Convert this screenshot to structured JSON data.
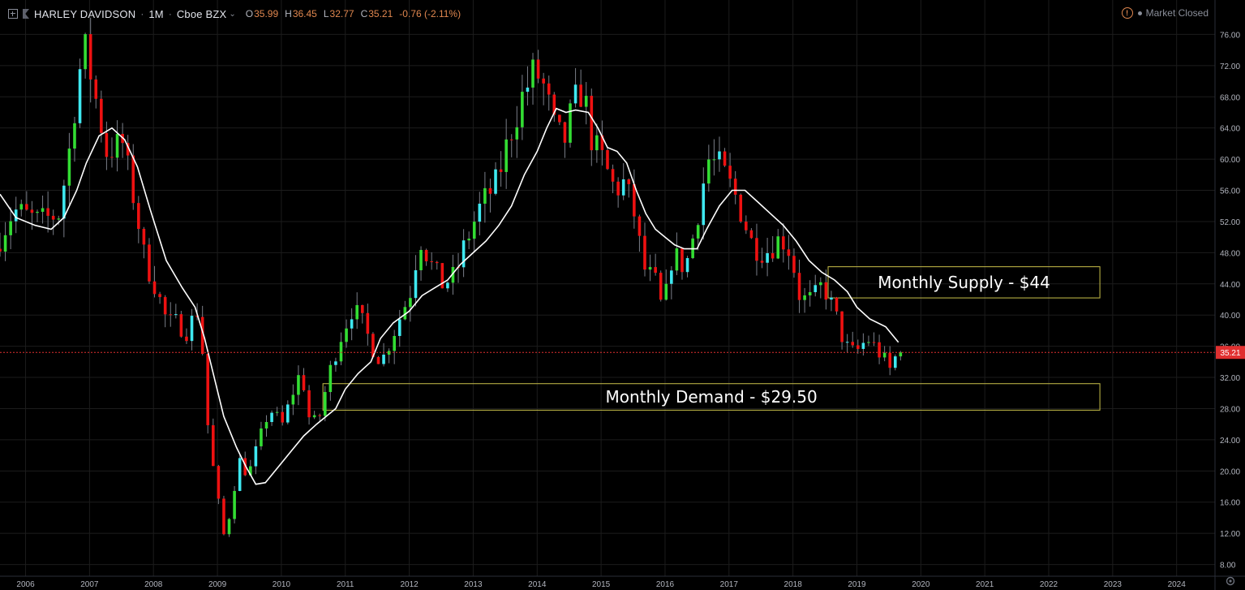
{
  "header": {
    "symbol": "HARLEY DAVIDSON",
    "interval": "1M",
    "exchange": "Cboe BZX",
    "open_label": "O",
    "open": "35.99",
    "high_label": "H",
    "high": "36.45",
    "low_label": "L",
    "low": "32.77",
    "close_label": "C",
    "close": "35.21",
    "change": "-0.76 (-2.11%)",
    "market_status": "Market Closed"
  },
  "colors": {
    "background": "#000000",
    "grid": "#1c1c1c",
    "up_bull": "#33dd33",
    "up_cyan": "#3ee8f0",
    "down": "#ee1111",
    "ma_line": "#ffffff",
    "zone_border": "#c9c04a",
    "price_line": "#e03030",
    "header_values": "#e0874f"
  },
  "chart_data": {
    "type": "candlestick",
    "interval": "1M",
    "ylim": [
      6.5,
      77.5
    ],
    "y_ticks": [
      "8.00",
      "12.00",
      "16.00",
      "20.00",
      "24.00",
      "28.00",
      "32.00",
      "36.00",
      "40.00",
      "44.00",
      "48.00",
      "52.00",
      "56.00",
      "60.00",
      "64.00",
      "68.00",
      "72.00",
      "76.00"
    ],
    "x_ticks": [
      "2006",
      "2007",
      "2008",
      "2009",
      "2010",
      "2011",
      "2012",
      "2013",
      "2014",
      "2015",
      "2016",
      "2017",
      "2018",
      "2019",
      "2020",
      "2021",
      "2022",
      "2023",
      "2024"
    ],
    "x_start_year": 2005.6,
    "x_end_year": 2024.6,
    "last_price": "35.21",
    "anchors": [
      [
        2005.6,
        48.5
      ],
      [
        2005.9,
        53.5
      ],
      [
        2006.3,
        52.0
      ],
      [
        2006.6,
        53.0
      ],
      [
        2006.75,
        60.0
      ],
      [
        2006.9,
        70.0
      ],
      [
        2007.0,
        74.5
      ],
      [
        2007.1,
        71.0
      ],
      [
        2007.2,
        67.0
      ],
      [
        2007.35,
        61.0
      ],
      [
        2007.6,
        62.0
      ],
      [
        2007.8,
        54.0
      ],
      [
        2007.95,
        47.0
      ],
      [
        2008.1,
        44.0
      ],
      [
        2008.3,
        39.0
      ],
      [
        2008.45,
        39.0
      ],
      [
        2008.6,
        38.0
      ],
      [
        2008.8,
        41.0
      ],
      [
        2008.95,
        24.0
      ],
      [
        2009.1,
        16.0
      ],
      [
        2009.2,
        11.0
      ],
      [
        2009.35,
        18.0
      ],
      [
        2009.45,
        22.0
      ],
      [
        2009.55,
        19.0
      ],
      [
        2009.7,
        23.0
      ],
      [
        2009.9,
        28.0
      ],
      [
        2010.1,
        26.0
      ],
      [
        2010.3,
        31.0
      ],
      [
        2010.4,
        33.0
      ],
      [
        2010.5,
        27.0
      ],
      [
        2010.65,
        26.0
      ],
      [
        2010.85,
        33.0
      ],
      [
        2011.0,
        37.0
      ],
      [
        2011.2,
        41.0
      ],
      [
        2011.35,
        39.0
      ],
      [
        2011.5,
        36.0
      ],
      [
        2011.65,
        34.0
      ],
      [
        2011.85,
        38.0
      ],
      [
        2012.1,
        43.0
      ],
      [
        2012.25,
        50.0
      ],
      [
        2012.45,
        46.0
      ],
      [
        2012.6,
        44.0
      ],
      [
        2012.8,
        45.0
      ],
      [
        2012.95,
        49.0
      ],
      [
        2013.2,
        54.0
      ],
      [
        2013.45,
        57.0
      ],
      [
        2013.65,
        63.0
      ],
      [
        2013.85,
        68.0
      ],
      [
        2014.05,
        71.5
      ],
      [
        2014.2,
        69.0
      ],
      [
        2014.35,
        64.0
      ],
      [
        2014.5,
        62.0
      ],
      [
        2014.65,
        67.0
      ],
      [
        2014.8,
        69.0
      ],
      [
        2014.95,
        62.0
      ],
      [
        2015.1,
        60.0
      ],
      [
        2015.3,
        56.0
      ],
      [
        2015.45,
        57.0
      ],
      [
        2015.6,
        53.0
      ],
      [
        2015.75,
        46.0
      ],
      [
        2015.95,
        44.0
      ],
      [
        2016.05,
        40.0
      ],
      [
        2016.2,
        48.0
      ],
      [
        2016.4,
        46.0
      ],
      [
        2016.55,
        51.0
      ],
      [
        2016.75,
        60.0
      ],
      [
        2016.95,
        59.0
      ],
      [
        2017.2,
        55.0
      ],
      [
        2017.45,
        49.0
      ],
      [
        2017.65,
        48.0
      ],
      [
        2017.9,
        50.0
      ],
      [
        2018.05,
        48.0
      ],
      [
        2018.2,
        42.0
      ],
      [
        2018.4,
        42.0
      ],
      [
        2018.55,
        44.0
      ],
      [
        2018.75,
        40.0
      ],
      [
        2018.9,
        36.0
      ],
      [
        2019.05,
        35.0
      ],
      [
        2019.25,
        37.0
      ],
      [
        2019.45,
        35.0
      ],
      [
        2019.6,
        33.0
      ],
      [
        2019.72,
        35.2
      ]
    ],
    "moving_average": [
      [
        2005.6,
        55.5
      ],
      [
        2005.85,
        52.5
      ],
      [
        2006.15,
        51.5
      ],
      [
        2006.4,
        51.0
      ],
      [
        2006.6,
        52.5
      ],
      [
        2006.8,
        56.0
      ],
      [
        2006.95,
        59.5
      ],
      [
        2007.15,
        63.0
      ],
      [
        2007.35,
        64.0
      ],
      [
        2007.55,
        62.5
      ],
      [
        2007.75,
        59.0
      ],
      [
        2007.95,
        53.5
      ],
      [
        2008.2,
        47.0
      ],
      [
        2008.45,
        43.5
      ],
      [
        2008.65,
        41.0
      ],
      [
        2008.8,
        37.0
      ],
      [
        2008.95,
        32.0
      ],
      [
        2009.1,
        27.0
      ],
      [
        2009.3,
        23.0
      ],
      [
        2009.45,
        20.5
      ],
      [
        2009.6,
        18.3
      ],
      [
        2009.75,
        18.5
      ],
      [
        2009.95,
        20.5
      ],
      [
        2010.15,
        22.5
      ],
      [
        2010.35,
        24.5
      ],
      [
        2010.55,
        26.0
      ],
      [
        2010.7,
        27.0
      ],
      [
        2010.85,
        28.0
      ],
      [
        2011.0,
        30.5
      ],
      [
        2011.2,
        32.5
      ],
      [
        2011.4,
        34.0
      ],
      [
        2011.55,
        37.0
      ],
      [
        2011.75,
        39.0
      ],
      [
        2012.0,
        40.5
      ],
      [
        2012.2,
        42.5
      ],
      [
        2012.4,
        43.5
      ],
      [
        2012.6,
        44.5
      ],
      [
        2012.8,
        46.5
      ],
      [
        2013.0,
        48.0
      ],
      [
        2013.2,
        49.5
      ],
      [
        2013.4,
        51.5
      ],
      [
        2013.6,
        54.0
      ],
      [
        2013.8,
        58.0
      ],
      [
        2014.0,
        61.0
      ],
      [
        2014.15,
        64.0
      ],
      [
        2014.3,
        66.5
      ],
      [
        2014.45,
        66.0
      ],
      [
        2014.6,
        66.3
      ],
      [
        2014.8,
        66.0
      ],
      [
        2014.95,
        64.0
      ],
      [
        2015.1,
        61.5
      ],
      [
        2015.25,
        61.0
      ],
      [
        2015.4,
        59.5
      ],
      [
        2015.55,
        56.0
      ],
      [
        2015.7,
        53.0
      ],
      [
        2015.85,
        51.0
      ],
      [
        2016.0,
        50.0
      ],
      [
        2016.15,
        49.0
      ],
      [
        2016.3,
        48.5
      ],
      [
        2016.5,
        48.5
      ],
      [
        2016.65,
        51.0
      ],
      [
        2016.85,
        54.0
      ],
      [
        2017.05,
        56.0
      ],
      [
        2017.25,
        56.0
      ],
      [
        2017.45,
        54.5
      ],
      [
        2017.65,
        53.0
      ],
      [
        2017.85,
        51.5
      ],
      [
        2018.05,
        49.5
      ],
      [
        2018.25,
        47.0
      ],
      [
        2018.45,
        45.5
      ],
      [
        2018.65,
        44.5
      ],
      [
        2018.85,
        43.0
      ],
      [
        2019.0,
        41.0
      ],
      [
        2019.2,
        39.5
      ],
      [
        2019.45,
        38.5
      ],
      [
        2019.65,
        36.5
      ]
    ],
    "annotations": [
      {
        "label": "Monthly Supply - $44",
        "price_low": 42.2,
        "price_high": 46.2,
        "start_year": 2018.55,
        "end_year": 2022.8
      },
      {
        "label": "Monthly Demand - $29.50",
        "price_low": 27.8,
        "price_high": 31.2,
        "start_year": 2010.65,
        "end_year": 2022.8
      }
    ]
  }
}
